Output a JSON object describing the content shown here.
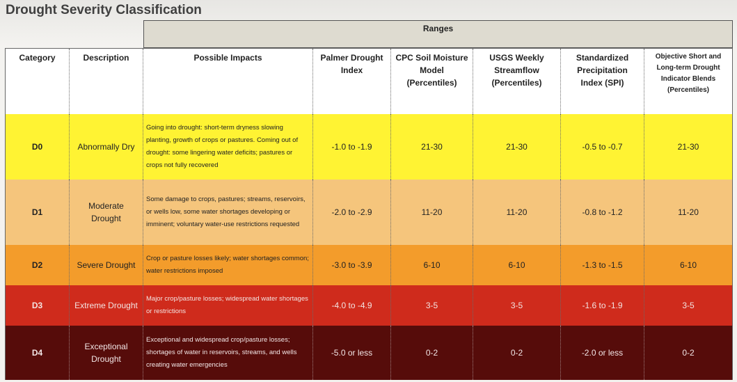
{
  "title": "Drought Severity Classification",
  "ranges_label": "Ranges",
  "headers": [
    "Category",
    "Description",
    "Possible Impacts",
    "Palmer Drought Index",
    "CPC Soil Moisture Model (Percentiles)",
    "USGS Weekly Streamflow (Percentiles)",
    "Standardized Precipitation Index (SPI)",
    "Objective Short and Long-term Drought Indicator Blends (Percentiles)"
  ],
  "rows": [
    {
      "category": "D0",
      "description": "Abnormally Dry",
      "impacts": "Going into drought: short-term dryness slowing planting, growth of crops or pastures. Coming out of drought: some lingering water deficits;  pastures or crops not fully recovered",
      "palmer": "-1.0 to -1.9",
      "cpc": "21-30",
      "usgs": "21-30",
      "spi": "-0.5 to -0.7",
      "blends": "21-30",
      "color": "#fff333"
    },
    {
      "category": "D1",
      "description": "Moderate Drought",
      "impacts": "Some damage to crops, pastures; streams, reservoirs, or wells low, some water shortages developing or imminent; voluntary water-use restrictions requested",
      "palmer": "-2.0 to -2.9",
      "cpc": "11-20",
      "usgs": "11-20",
      "spi": "-0.8 to -1.2",
      "blends": "11-20",
      "color": "#f5c57c"
    },
    {
      "category": "D2",
      "description": "Severe Drought",
      "impacts": "Crop or pasture losses likely;  water shortages common; water restrictions imposed",
      "palmer": "-3.0 to -3.9",
      "cpc": "6-10",
      "usgs": "6-10",
      "spi": "-1.3 to -1.5",
      "blends": "6-10",
      "color": "#f39c2b"
    },
    {
      "category": "D3",
      "description": "Extreme Drought",
      "impacts": "Major crop/pasture losses;  widespread water shortages or restrictions",
      "palmer": "-4.0 to -4.9",
      "cpc": "3-5",
      "usgs": "3-5",
      "spi": "-1.6 to -1.9",
      "blends": "3-5",
      "color": "#cf2b1c"
    },
    {
      "category": "D4",
      "description": "Exceptional Drought",
      "impacts": "Exceptional and widespread crop/pasture losses; shortages of water in reservoirs, streams, and wells creating water emergencies",
      "palmer": "-5.0 or less",
      "cpc": "0-2",
      "usgs": "0-2",
      "spi": "-2.0 or less",
      "blends": "0-2",
      "color": "#560c0a"
    }
  ]
}
